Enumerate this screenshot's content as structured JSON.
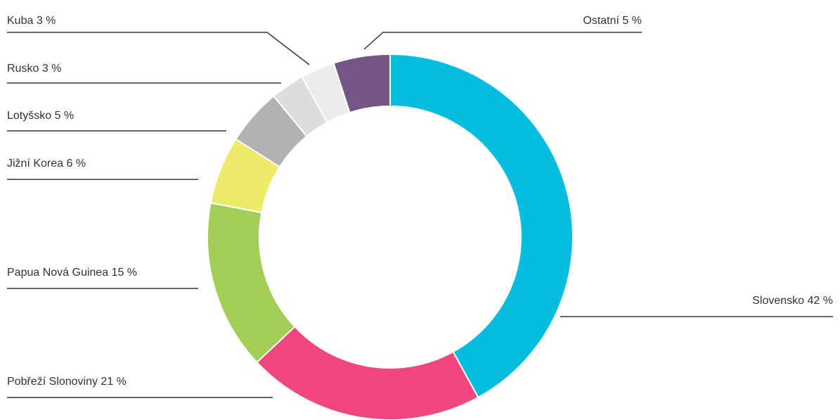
{
  "chart_data": {
    "type": "donut",
    "categories": [
      "Slovensko",
      "Pobřeží Slonoviny",
      "Papua Nová Guinea",
      "Jižní Korea",
      "Lotyšsko",
      "Rusko",
      "Kuba",
      "Ostatní"
    ],
    "values": [
      42,
      21,
      15,
      6,
      5,
      3,
      3,
      5
    ],
    "value_labels": [
      "42 %",
      "21 %",
      "15 %",
      "6 %",
      "5 %",
      "3 %",
      "3 %",
      "5 %"
    ],
    "colors": [
      "#06bcdf",
      "#ef4581",
      "#a3cd55",
      "#eeeb6a",
      "#b1b2b4",
      "#dcdddf",
      "#ececec",
      "#735686"
    ]
  }
}
